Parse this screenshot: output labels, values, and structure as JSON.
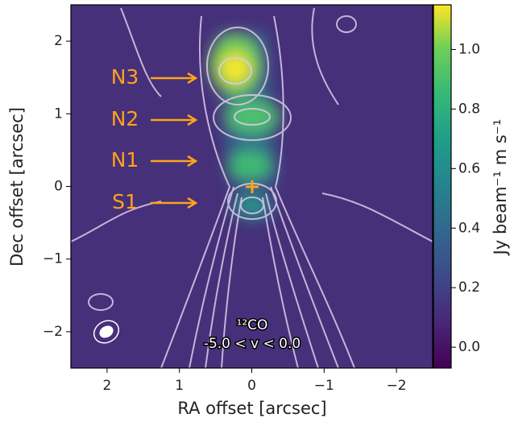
{
  "chart_data": {
    "type": "image-map",
    "xlabel": "RA offset [arcsec]",
    "ylabel": "Dec offset [arcsec]",
    "xlim": [
      2.5,
      -2.5
    ],
    "ylim": [
      -2.5,
      2.5
    ],
    "xticks": [
      2,
      1,
      0,
      {
        "value": -1,
        "label": "−1"
      },
      {
        "value": -2,
        "label": "−2"
      }
    ],
    "yticks": [
      {
        "value": -2,
        "label": "−2"
      },
      {
        "value": -1,
        "label": "−1"
      },
      0,
      1,
      2
    ],
    "colorbar": {
      "label": "Jy beam⁻¹ m s⁻¹",
      "lim": [
        -0.07,
        1.15
      ],
      "ticks": [
        {
          "value": 0,
          "label": "0.0"
        },
        {
          "value": 0.2,
          "label": "0.2"
        },
        {
          "value": 0.4,
          "label": "0.4"
        },
        {
          "value": 0.6,
          "label": "0.6"
        },
        {
          "value": 0.8,
          "label": "0.8"
        },
        {
          "value": 1.0,
          "label": "1.0"
        }
      ]
    },
    "annotations": [
      "N3",
      "N2",
      "N1",
      "S1"
    ],
    "line_label": "¹²CO",
    "velocity_label": "-5.0 < v < 0.0"
  }
}
